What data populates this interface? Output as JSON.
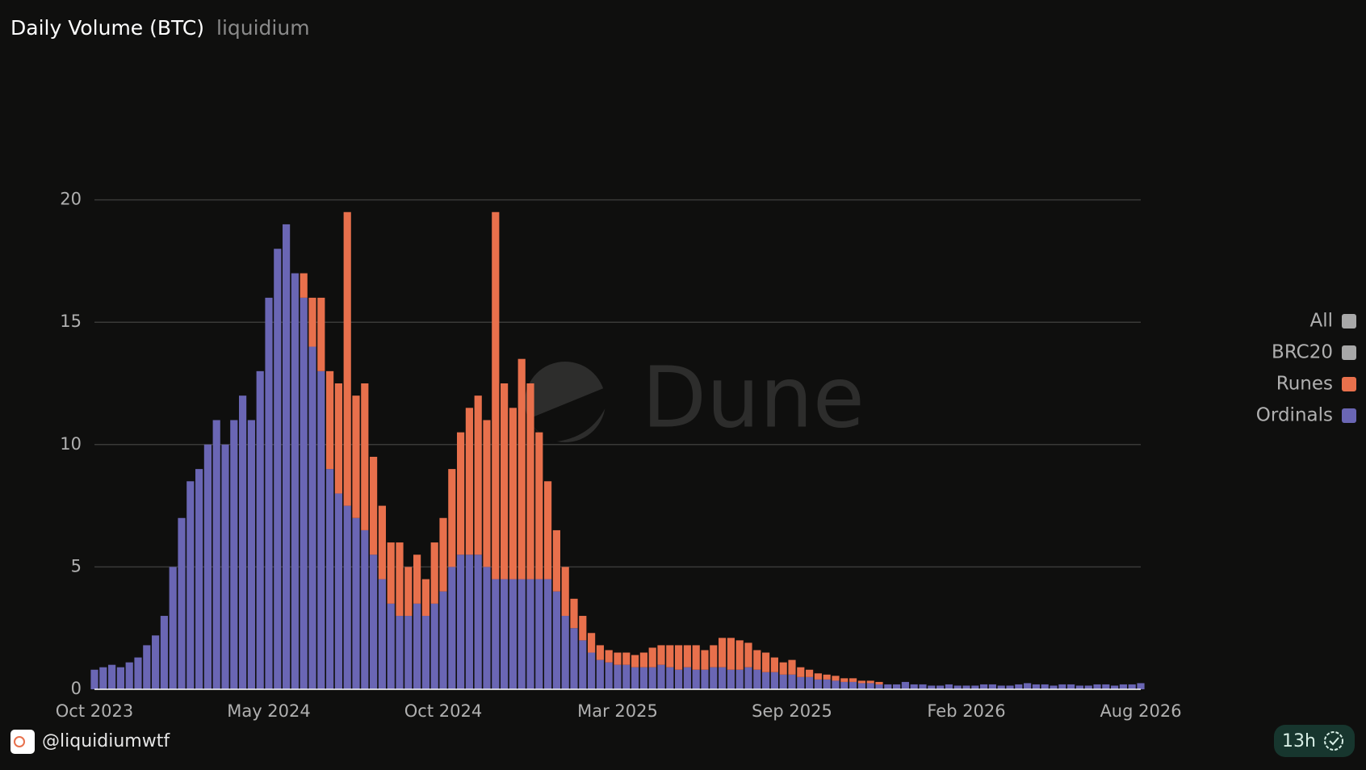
{
  "chart_data": {
    "type": "stacked_bar",
    "title": "Daily Volume (BTC)",
    "subtitle": "liquidium",
    "watermark": "Dune",
    "x": [
      0,
      0.05,
      0.1,
      0.15,
      0.2,
      0.25,
      0.3,
      0.35,
      0.4,
      0.45,
      0.5,
      0.55,
      0.6,
      0.65,
      0.7,
      0.75,
      0.8,
      0.85,
      0.9,
      0.95,
      1,
      1.05,
      1.1,
      1.15,
      1.2,
      1.25,
      1.3,
      1.35,
      1.4,
      1.45,
      1.5,
      1.55,
      1.6,
      1.65,
      1.7,
      1.75,
      1.8,
      1.85,
      1.9,
      1.95,
      2,
      2.05,
      2.1,
      2.15,
      2.2,
      2.25,
      2.3,
      2.35,
      2.4,
      2.45,
      2.5,
      2.55,
      2.6,
      2.65,
      2.7,
      2.75,
      2.8,
      2.85,
      2.9,
      2.95,
      3,
      3.05,
      3.1,
      3.15,
      3.2,
      3.25,
      3.3,
      3.35,
      3.4,
      3.45,
      3.5,
      3.55,
      3.6,
      3.65,
      3.7,
      3.75,
      3.8,
      3.85,
      3.9,
      3.95,
      4,
      4.05,
      4.1,
      4.15,
      4.2,
      4.25,
      4.3,
      4.35,
      4.4,
      4.45,
      4.5,
      4.55,
      4.6,
      4.65,
      4.7,
      4.75,
      4.8,
      4.85,
      4.9,
      4.95,
      5,
      5.05,
      5.1,
      5.15,
      5.2,
      5.25,
      5.3,
      5.35,
      5.4,
      5.45,
      5.5,
      5.55,
      5.6,
      5.65,
      5.7,
      5.75,
      5.8,
      5.85,
      5.9,
      5.95,
      6
    ],
    "xlim": [
      0,
      6
    ],
    "xticks": [
      {
        "value": 0,
        "label": "Oct 2023"
      },
      {
        "value": 1,
        "label": "May 2024"
      },
      {
        "value": 2,
        "label": "Oct 2024"
      },
      {
        "value": 3,
        "label": "Mar 2025"
      },
      {
        "value": 4,
        "label": "Sep 2025"
      },
      {
        "value": 5,
        "label": "Feb 2026"
      },
      {
        "value": 6,
        "label": "Aug 2026"
      }
    ],
    "ylim": [
      0,
      25
    ],
    "yticks": [
      0,
      5,
      10,
      15,
      20
    ],
    "grid": true,
    "legend": "right",
    "series": [
      {
        "name": "All",
        "color": "#a8a8a8",
        "visible": false
      },
      {
        "name": "BRC20",
        "color": "#a8a8a8",
        "visible": false
      },
      {
        "name": "Runes",
        "color": "#e8704c",
        "values": [
          0,
          0,
          0,
          0,
          0,
          0,
          0,
          0,
          0,
          0,
          0,
          0,
          0,
          0,
          0,
          0,
          0,
          0,
          0,
          0,
          0,
          0,
          0,
          0,
          1,
          2,
          3,
          4,
          4.5,
          12,
          5,
          6,
          4,
          3,
          2.5,
          3,
          2,
          2,
          1.5,
          2.5,
          3,
          4,
          5,
          6,
          6.5,
          6,
          15,
          8,
          7,
          9,
          8,
          6,
          4,
          2.5,
          2,
          1.2,
          1,
          0.8,
          0.6,
          0.5,
          0.5,
          0.5,
          0.5,
          0.6,
          0.8,
          0.8,
          0.9,
          1,
          0.9,
          1,
          0.8,
          0.9,
          1.2,
          1.3,
          1.2,
          1,
          0.8,
          0.8,
          0.6,
          0.5,
          0.6,
          0.4,
          0.3,
          0.25,
          0.2,
          0.2,
          0.15,
          0.15,
          0.1,
          0.1,
          0.1,
          0,
          0,
          0,
          0,
          0,
          0,
          0,
          0,
          0,
          0,
          0,
          0,
          0,
          0,
          0,
          0,
          0,
          0,
          0,
          0,
          0,
          0,
          0,
          0,
          0,
          0,
          0,
          0,
          0,
          0
        ]
      },
      {
        "name": "Ordinals",
        "color": "#6a66b4",
        "values": [
          0.8,
          0.9,
          1,
          0.9,
          1.1,
          1.3,
          1.8,
          2.2,
          3,
          5,
          7,
          8.5,
          9,
          10,
          11,
          10,
          11,
          12,
          11,
          13,
          16,
          18,
          19,
          17,
          16,
          14,
          13,
          9,
          8,
          7.5,
          7,
          6.5,
          5.5,
          4.5,
          3.5,
          3,
          3,
          3.5,
          3,
          3.5,
          4,
          5,
          5.5,
          5.5,
          5.5,
          5,
          4.5,
          4.5,
          4.5,
          4.5,
          4.5,
          4.5,
          4.5,
          4,
          3,
          2.5,
          2,
          1.5,
          1.2,
          1.1,
          1,
          1,
          0.9,
          0.9,
          0.9,
          1,
          0.9,
          0.8,
          0.9,
          0.8,
          0.8,
          0.9,
          0.9,
          0.8,
          0.8,
          0.9,
          0.8,
          0.7,
          0.7,
          0.6,
          0.6,
          0.5,
          0.5,
          0.4,
          0.4,
          0.35,
          0.3,
          0.3,
          0.25,
          0.25,
          0.2,
          0.2,
          0.2,
          0.3,
          0.2,
          0.2,
          0.15,
          0.15,
          0.2,
          0.15,
          0.15,
          0.15,
          0.2,
          0.2,
          0.15,
          0.15,
          0.2,
          0.25,
          0.2,
          0.2,
          0.15,
          0.2,
          0.2,
          0.15,
          0.15,
          0.2,
          0.2,
          0.15,
          0.2,
          0.2,
          0.25
        ]
      }
    ]
  },
  "footer": {
    "handle": "@liquidiumwtf",
    "age": "13h"
  }
}
